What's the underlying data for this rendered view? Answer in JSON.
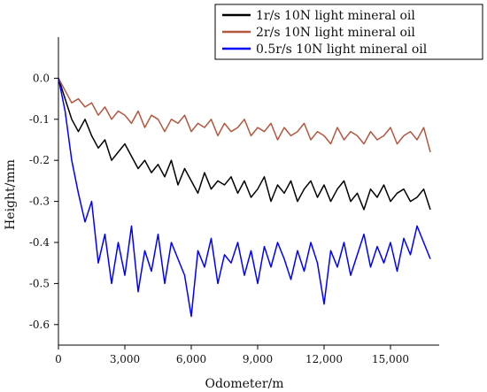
{
  "chart_data": {
    "type": "line",
    "xlabel": "Odometer/m",
    "ylabel": "Height/mm",
    "xlim": [
      0,
      17200
    ],
    "ylim": [
      -0.65,
      0.1
    ],
    "xticks": [
      0,
      3000,
      6000,
      9000,
      12000,
      15000
    ],
    "xtick_labels": [
      "0",
      "3,000",
      "6,000",
      "9,000",
      "12,000",
      "15,000"
    ],
    "yticks": [
      0.0,
      -0.1,
      -0.2,
      -0.3,
      -0.4,
      -0.5,
      -0.6
    ],
    "ytick_labels": [
      "0.0",
      "-0.1",
      "-0.2",
      "-0.3",
      "-0.4",
      "-0.5",
      "-0.6"
    ],
    "legend_position": "top-right",
    "grid": false,
    "series": [
      {
        "name": "1r/s 10N light mineral oil",
        "color": "#000000",
        "x": [
          0,
          300,
          600,
          900,
          1200,
          1500,
          1800,
          2100,
          2400,
          2700,
          3000,
          3300,
          3600,
          3900,
          4200,
          4500,
          4800,
          5100,
          5400,
          5700,
          6000,
          6300,
          6600,
          6900,
          7200,
          7500,
          7800,
          8100,
          8400,
          8700,
          9000,
          9300,
          9600,
          9900,
          10200,
          10500,
          10800,
          11100,
          11400,
          11700,
          12000,
          12300,
          12600,
          12900,
          13200,
          13500,
          13800,
          14100,
          14400,
          14700,
          15000,
          15300,
          15600,
          15900,
          16200,
          16500,
          16800
        ],
        "y": [
          0.0,
          -0.05,
          -0.1,
          -0.13,
          -0.1,
          -0.14,
          -0.17,
          -0.15,
          -0.2,
          -0.18,
          -0.16,
          -0.19,
          -0.22,
          -0.2,
          -0.23,
          -0.21,
          -0.24,
          -0.2,
          -0.26,
          -0.22,
          -0.25,
          -0.28,
          -0.23,
          -0.27,
          -0.25,
          -0.26,
          -0.24,
          -0.28,
          -0.25,
          -0.29,
          -0.27,
          -0.24,
          -0.3,
          -0.26,
          -0.28,
          -0.25,
          -0.3,
          -0.27,
          -0.25,
          -0.29,
          -0.26,
          -0.3,
          -0.27,
          -0.25,
          -0.3,
          -0.28,
          -0.32,
          -0.27,
          -0.29,
          -0.26,
          -0.3,
          -0.28,
          -0.27,
          -0.3,
          -0.29,
          -0.27,
          -0.32
        ]
      },
      {
        "name": "2r/s 10N light mineral oil",
        "color": "#b5573f",
        "x": [
          0,
          300,
          600,
          900,
          1200,
          1500,
          1800,
          2100,
          2400,
          2700,
          3000,
          3300,
          3600,
          3900,
          4200,
          4500,
          4800,
          5100,
          5400,
          5700,
          6000,
          6300,
          6600,
          6900,
          7200,
          7500,
          7800,
          8100,
          8400,
          8700,
          9000,
          9300,
          9600,
          9900,
          10200,
          10500,
          10800,
          11100,
          11400,
          11700,
          12000,
          12300,
          12600,
          12900,
          13200,
          13500,
          13800,
          14100,
          14400,
          14700,
          15000,
          15300,
          15600,
          15900,
          16200,
          16500,
          16800
        ],
        "y": [
          0.0,
          -0.03,
          -0.06,
          -0.05,
          -0.07,
          -0.06,
          -0.09,
          -0.07,
          -0.1,
          -0.08,
          -0.09,
          -0.11,
          -0.08,
          -0.12,
          -0.09,
          -0.1,
          -0.13,
          -0.1,
          -0.11,
          -0.09,
          -0.13,
          -0.11,
          -0.12,
          -0.1,
          -0.14,
          -0.11,
          -0.13,
          -0.12,
          -0.1,
          -0.14,
          -0.12,
          -0.13,
          -0.11,
          -0.15,
          -0.12,
          -0.14,
          -0.13,
          -0.11,
          -0.15,
          -0.13,
          -0.14,
          -0.16,
          -0.12,
          -0.15,
          -0.13,
          -0.14,
          -0.16,
          -0.13,
          -0.15,
          -0.14,
          -0.12,
          -0.16,
          -0.14,
          -0.13,
          -0.15,
          -0.12,
          -0.18
        ]
      },
      {
        "name": "0.5r/s 10N light mineral oil",
        "color": "#0000ff",
        "x": [
          0,
          300,
          600,
          900,
          1200,
          1500,
          1800,
          2100,
          2400,
          2700,
          3000,
          3300,
          3600,
          3900,
          4200,
          4500,
          4800,
          5100,
          5400,
          5700,
          6000,
          6300,
          6600,
          6900,
          7200,
          7500,
          7800,
          8100,
          8400,
          8700,
          9000,
          9300,
          9600,
          9900,
          10200,
          10500,
          10800,
          11100,
          11400,
          11700,
          12000,
          12300,
          12600,
          12900,
          13200,
          13500,
          13800,
          14100,
          14400,
          14700,
          15000,
          15300,
          15600,
          15900,
          16200,
          16500,
          16800
        ],
        "y": [
          0.0,
          -0.08,
          -0.2,
          -0.28,
          -0.35,
          -0.3,
          -0.45,
          -0.38,
          -0.5,
          -0.4,
          -0.48,
          -0.36,
          -0.52,
          -0.42,
          -0.47,
          -0.38,
          -0.5,
          -0.4,
          -0.44,
          -0.48,
          -0.58,
          -0.42,
          -0.46,
          -0.39,
          -0.5,
          -0.43,
          -0.45,
          -0.4,
          -0.48,
          -0.42,
          -0.5,
          -0.41,
          -0.46,
          -0.4,
          -0.44,
          -0.49,
          -0.42,
          -0.47,
          -0.4,
          -0.45,
          -0.55,
          -0.42,
          -0.46,
          -0.4,
          -0.48,
          -0.43,
          -0.38,
          -0.46,
          -0.41,
          -0.45,
          -0.4,
          -0.47,
          -0.39,
          -0.43,
          -0.36,
          -0.4,
          -0.44
        ]
      }
    ]
  }
}
